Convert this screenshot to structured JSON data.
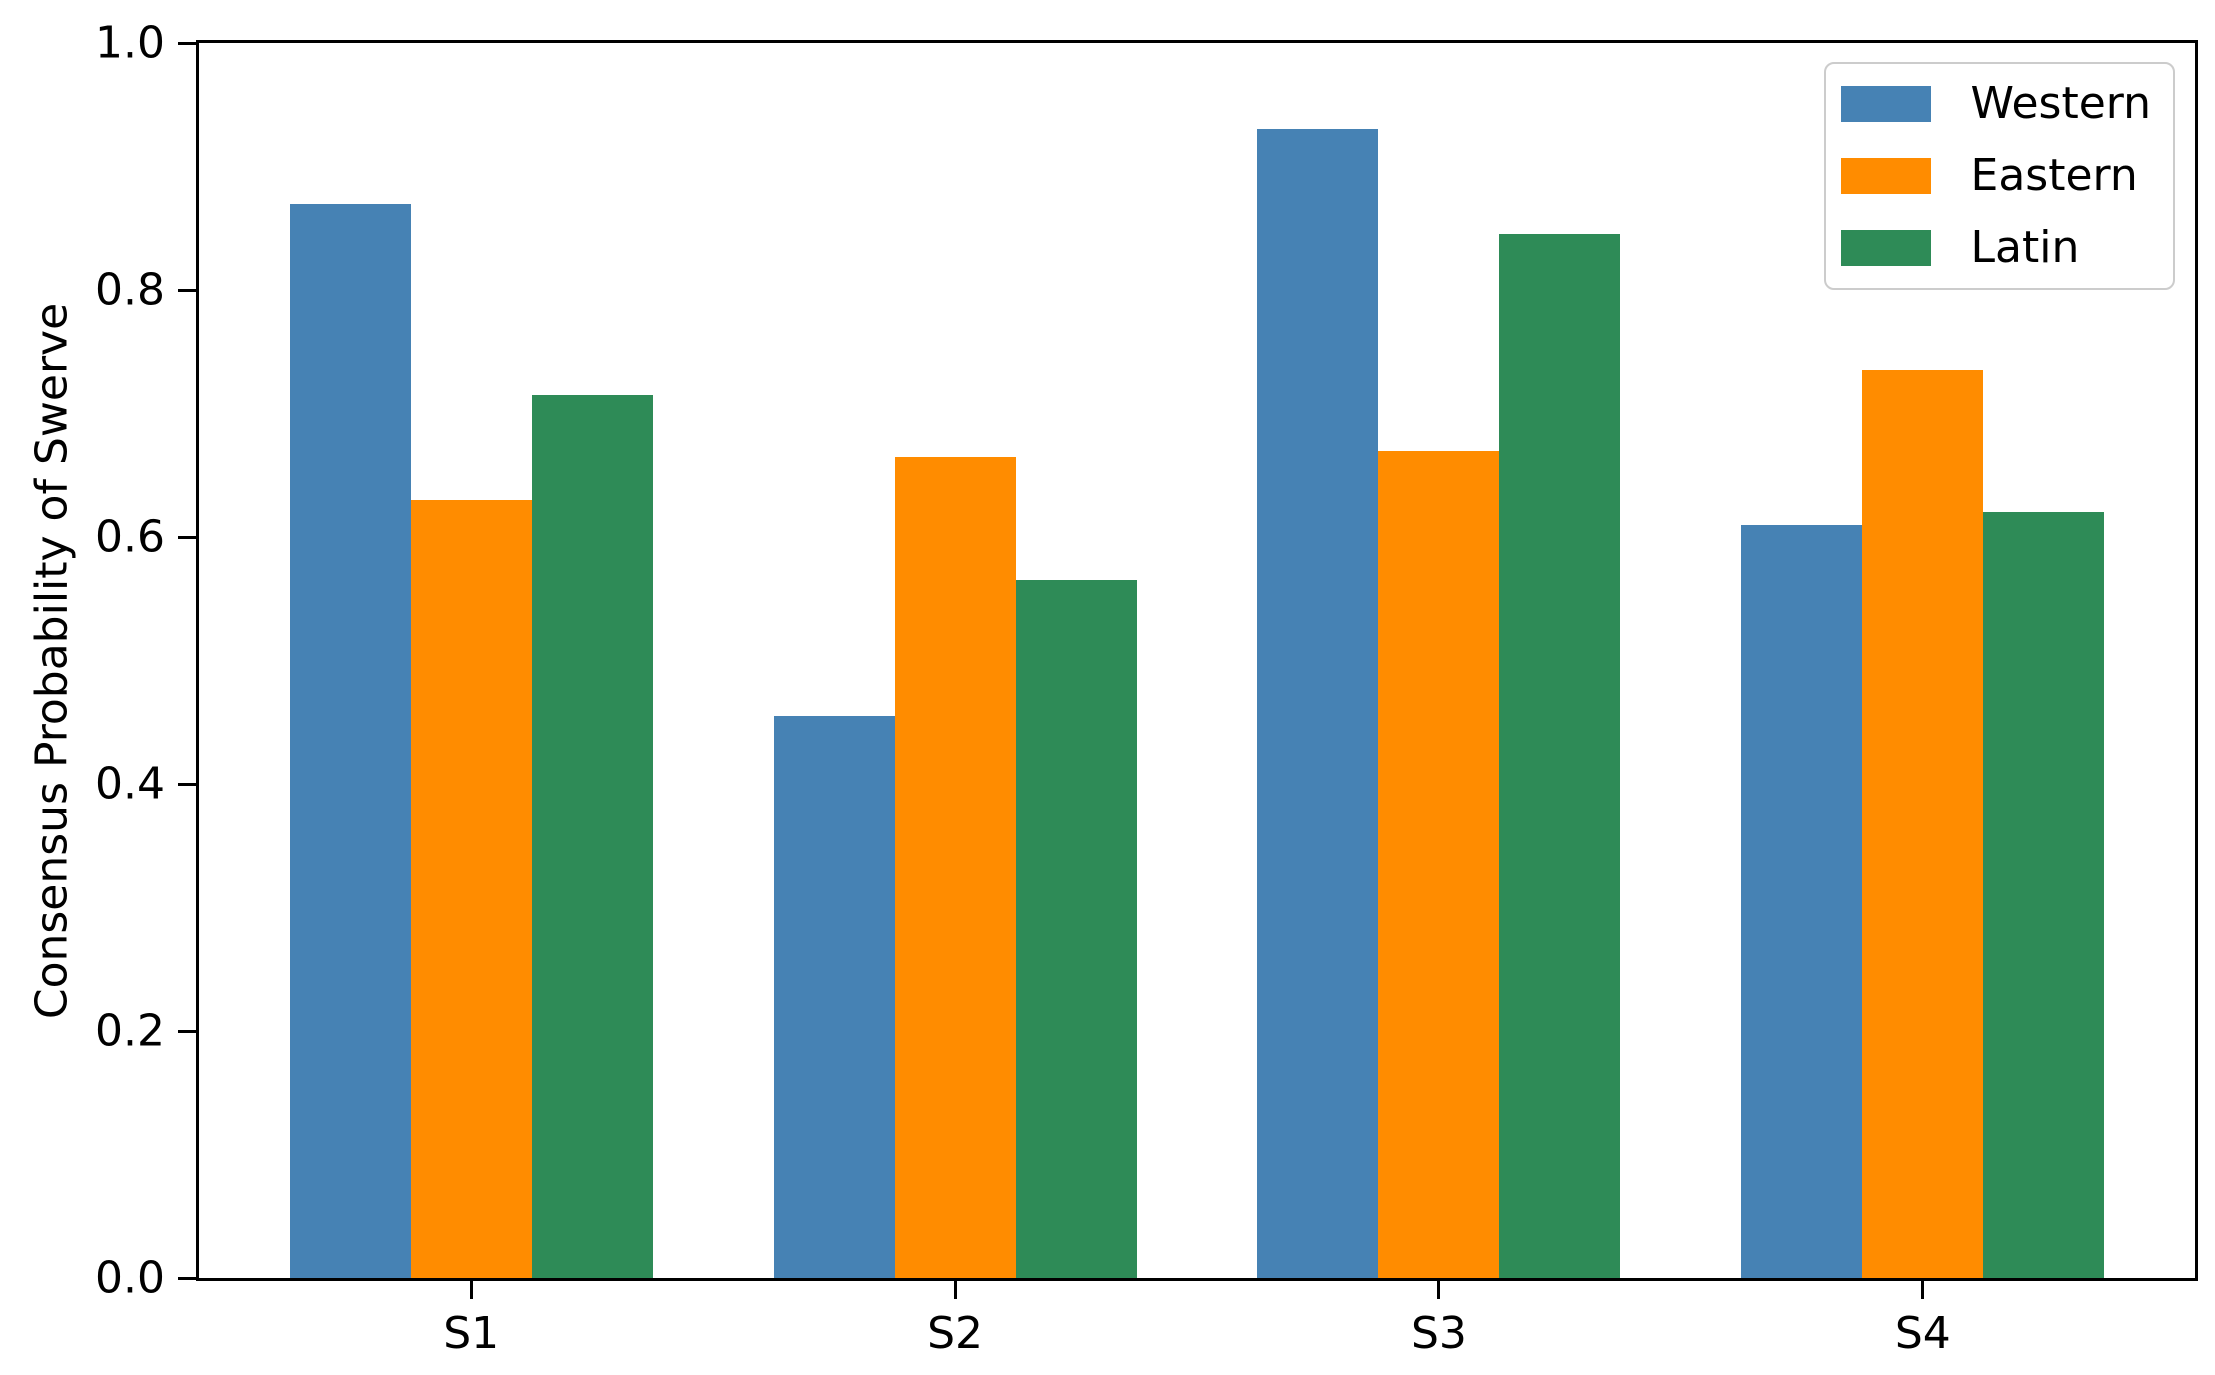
{
  "figure": {
    "background": "#ffffff",
    "text_color": "#000000"
  },
  "chart_data": {
    "type": "bar",
    "title": "",
    "xlabel": "",
    "ylabel": "Consensus Probability of Swerve",
    "categories": [
      "S1",
      "S2",
      "S3",
      "S4"
    ],
    "series": [
      {
        "name": "Western",
        "color": "#4682B4",
        "values": [
          0.87,
          0.455,
          0.93,
          0.61
        ]
      },
      {
        "name": "Eastern",
        "color": "#FF8C00",
        "values": [
          0.63,
          0.665,
          0.67,
          0.735
        ]
      },
      {
        "name": "Latin",
        "color": "#2E8B57",
        "values": [
          0.715,
          0.565,
          0.845,
          0.62
        ]
      }
    ],
    "ylim": [
      0.0,
      1.0
    ],
    "yticks": [
      "0.0",
      "0.2",
      "0.4",
      "0.6",
      "0.8",
      "1.0"
    ],
    "xlim": [
      -0.5625,
      3.5625
    ],
    "bar_width": 0.25,
    "grid": false,
    "legend_position": "upper right",
    "legend_edge_color": "#cccccc"
  }
}
